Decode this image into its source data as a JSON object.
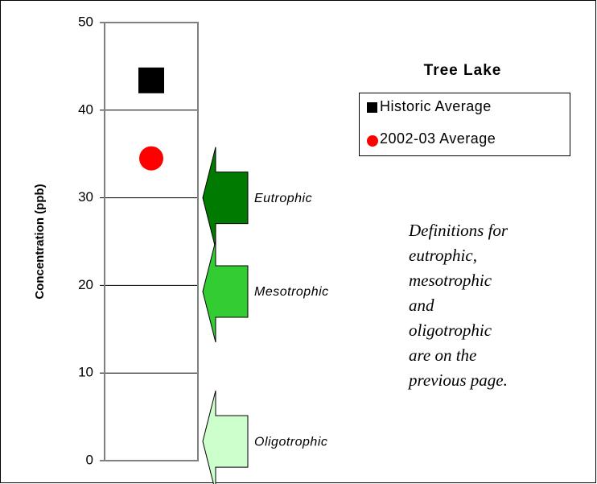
{
  "chart_data": {
    "type": "scatter",
    "title": "Tree Lake",
    "ylabel": "Concentration (ppb)",
    "ylim": [
      0,
      50
    ],
    "yticks": [
      0,
      10,
      20,
      30,
      40,
      50
    ],
    "grid": true,
    "series": [
      {
        "name": "Historic Average",
        "color": "#000000",
        "marker": "square",
        "values": [
          43.4
        ]
      },
      {
        "name": "2002-03 Average",
        "color": "#ff0000",
        "marker": "circle",
        "values": [
          34.5
        ]
      }
    ],
    "annotations": [
      {
        "text": "Eutrophic",
        "value": 30,
        "color": "#007a00"
      },
      {
        "text": "Mesotrophic",
        "value": 19.3,
        "color": "#33cc33"
      },
      {
        "text": "Oligotrophic",
        "value": 2.2,
        "color": "#ccffcc"
      }
    ],
    "note": [
      "Definitions for",
      "eutrophic,",
      "mesotrophic",
      "and",
      "oligotrophic",
      "are on the",
      "previous page."
    ]
  }
}
